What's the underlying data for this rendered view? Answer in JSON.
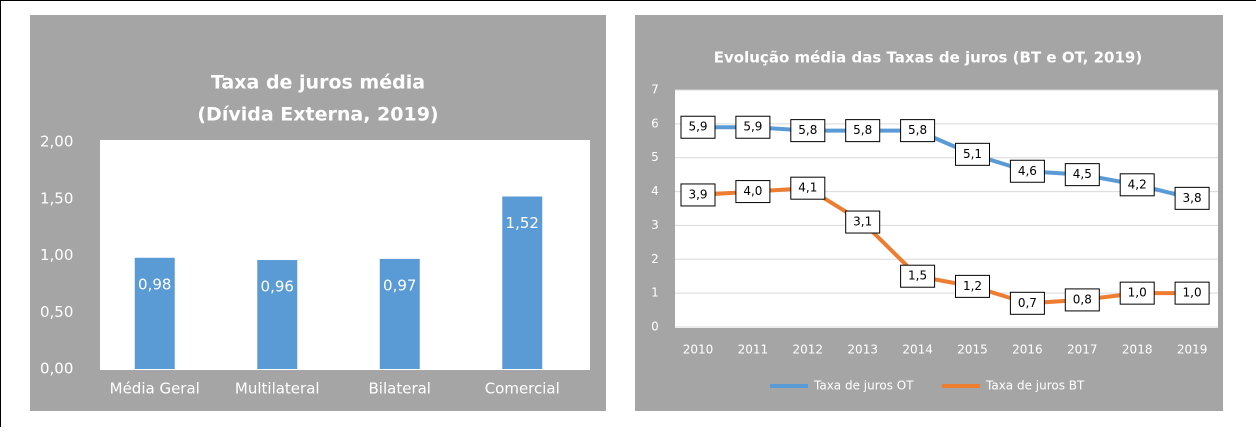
{
  "chart_data": [
    {
      "type": "bar",
      "title": "Taxa de juros média",
      "subtitle": "(Dívida Externa, 2019)",
      "categories": [
        "Média Geral",
        "Multilateral",
        "Bilateral",
        "Comercial"
      ],
      "values": [
        0.98,
        0.96,
        0.97,
        1.52
      ],
      "value_labels": [
        "0,98",
        "0,96",
        "0,97",
        "1,52"
      ],
      "color": "#5b9bd5",
      "ylim": [
        0,
        2
      ],
      "yticks": [
        {
          "value": 0,
          "label": "0,00"
        },
        {
          "value": 0.5,
          "label": "0,50"
        },
        {
          "value": 1,
          "label": "1,00"
        },
        {
          "value": 1.5,
          "label": "1,50"
        },
        {
          "value": 2,
          "label": "2,00"
        }
      ],
      "grid": false
    },
    {
      "type": "line",
      "title": "Evolução média das Taxas de juros (BT e OT, 2019)",
      "categories": [
        "2010",
        "2011",
        "2012",
        "2013",
        "2014",
        "2015",
        "2016",
        "2017",
        "2018",
        "2019"
      ],
      "series": [
        {
          "name": "Taxa de juros OT",
          "color": "#5b9bd5",
          "values": [
            5.9,
            5.9,
            5.8,
            5.8,
            5.8,
            5.1,
            4.6,
            4.5,
            4.2,
            3.8
          ],
          "value_labels": [
            "5,9",
            "5,9",
            "5,8",
            "5,8",
            "5,8",
            "5,1",
            "4,6",
            "4,5",
            "4,2",
            "3,8"
          ]
        },
        {
          "name": "Taxa de juros BT",
          "color": "#ed7d31",
          "values": [
            3.9,
            4.0,
            4.1,
            3.1,
            1.5,
            1.2,
            0.7,
            0.8,
            1.0,
            1.0
          ],
          "value_labels": [
            "3,9",
            "4,0",
            "4,1",
            "3,1",
            "1,5",
            "1,2",
            "0,7",
            "0,8",
            "1,0",
            "1,0"
          ]
        }
      ],
      "ylim": [
        0,
        7
      ],
      "yticks": [
        0,
        1,
        2,
        3,
        4,
        5,
        6,
        7
      ],
      "grid": true,
      "legend": "bottom"
    }
  ]
}
